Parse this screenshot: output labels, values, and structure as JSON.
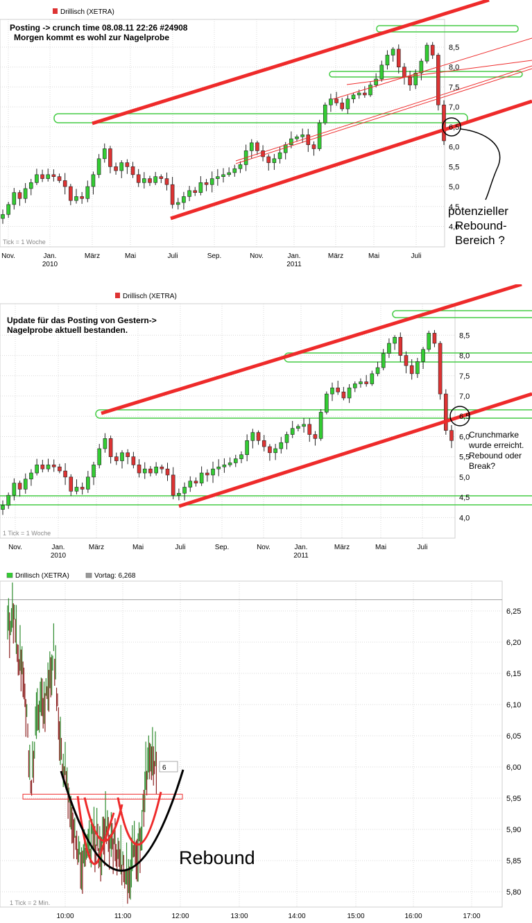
{
  "colors": {
    "up": "#33cc33",
    "down": "#dd3333",
    "channel": "#ee2a2a",
    "band": "#44cc44",
    "grid": "#d8d8d8",
    "axis_text": "#000000"
  },
  "chart_data": [
    {
      "type": "candlestick",
      "legend": "Drillisch (XETRA)",
      "annotation": [
        "Posting -> crunch time  08.08.11 22:26 #24908",
        "Morgen kommt es wohl zur Nagelprobe"
      ],
      "note": [
        "potenzieller",
        "Rebound-",
        "Bereich  ?"
      ],
      "tick_note": "Tick = 1 Woche",
      "x_ticks": [
        "Nov.",
        "Jan.",
        "März",
        "Mai",
        "Juli",
        "Sep.",
        "Nov.",
        "Jan.",
        "März",
        "Mai",
        "Juli"
      ],
      "year_labels": [
        "2010",
        "2011"
      ],
      "y_ticks": [
        "4,0",
        "4,5",
        "5,0",
        "5,5",
        "6,0",
        "6,5",
        "7,0",
        "7,5",
        "8,0",
        "8,5"
      ],
      "ylim": [
        3.8,
        8.9
      ],
      "grid": true,
      "closes": [
        4.3,
        4.55,
        4.85,
        4.7,
        4.95,
        5.1,
        5.3,
        5.2,
        5.3,
        5.25,
        5.15,
        5.0,
        4.65,
        4.75,
        4.7,
        5.0,
        5.3,
        5.7,
        5.95,
        5.5,
        5.4,
        5.6,
        5.5,
        5.3,
        5.1,
        5.2,
        5.1,
        5.25,
        5.2,
        5.05,
        4.55,
        4.6,
        4.75,
        4.9,
        4.85,
        5.1,
        5.05,
        5.2,
        5.25,
        5.3,
        5.35,
        5.45,
        5.55,
        5.9,
        6.1,
        5.9,
        5.75,
        5.6,
        5.7,
        5.85,
        6.05,
        6.2,
        6.25,
        6.3,
        6.05,
        5.95,
        6.6,
        7.05,
        7.2,
        7.1,
        6.95,
        7.2,
        7.3,
        7.35,
        7.3,
        7.55,
        7.7,
        8.05,
        8.3,
        8.45,
        8.0,
        7.75,
        7.55,
        7.85,
        8.15,
        8.55,
        8.3,
        7.05,
        6.15
      ],
      "unit": "EUR"
    },
    {
      "type": "candlestick",
      "legend": "Drillisch (XETRA)",
      "annotation": [
        "Update  für das Posting von Gestern->",
        "Nagelprobe aktuell bestanden."
      ],
      "note": [
        "Crunchmarke",
        "wurde erreicht.",
        "Rebound oder",
        "Break?"
      ],
      "tick_note": "1 Tick = 1 Woche",
      "x_ticks": [
        "Nov.",
        "Jan.",
        "März",
        "Mai",
        "Juli",
        "Sep.",
        "Nov.",
        "Jan.",
        "März",
        "Mai",
        "Juli"
      ],
      "year_labels": [
        "2010",
        "2011"
      ],
      "y_ticks": [
        "4,0",
        "4,5",
        "5,0",
        "5,5",
        "6,0",
        "6,5",
        "7,0",
        "7,5",
        "8,0",
        "8,5"
      ],
      "ylim": [
        3.8,
        8.9
      ],
      "grid": true,
      "closes": [
        4.3,
        4.55,
        4.85,
        4.7,
        4.95,
        5.1,
        5.3,
        5.2,
        5.3,
        5.25,
        5.15,
        5.0,
        4.65,
        4.75,
        4.7,
        5.0,
        5.3,
        5.7,
        5.95,
        5.5,
        5.4,
        5.6,
        5.5,
        5.3,
        5.1,
        5.2,
        5.1,
        5.25,
        5.2,
        5.05,
        4.55,
        4.6,
        4.75,
        4.9,
        4.85,
        5.1,
        5.05,
        5.2,
        5.25,
        5.3,
        5.35,
        5.45,
        5.55,
        5.9,
        6.1,
        5.9,
        5.75,
        5.6,
        5.7,
        5.85,
        6.05,
        6.2,
        6.25,
        6.3,
        6.05,
        5.95,
        6.6,
        7.05,
        7.2,
        7.1,
        6.95,
        7.2,
        7.3,
        7.35,
        7.3,
        7.55,
        7.7,
        8.05,
        8.3,
        8.45,
        8.0,
        7.75,
        7.55,
        7.85,
        8.15,
        8.55,
        8.3,
        7.05,
        6.15,
        5.9
      ],
      "unit": "EUR"
    },
    {
      "type": "line",
      "legend": "Drillisch (XETRA)",
      "legend2": "Vortag: 6,268",
      "label": "Rebound",
      "price_tag": "6",
      "tick_note": "1 Tick = 2 Min.",
      "x_ticks": [
        "10:00",
        "11:00",
        "12:00",
        "13:00",
        "14:00",
        "15:00",
        "16:00",
        "17:00"
      ],
      "y_ticks": [
        "5,80",
        "5,85",
        "5,90",
        "5,95",
        "6,00",
        "6,05",
        "6,10",
        "6,15",
        "6,20",
        "6,25"
      ],
      "ylim": [
        5.78,
        6.27
      ],
      "previous_close": 6.268,
      "grid": true,
      "x_minutes": [
        9.0,
        9.1,
        9.2,
        9.3,
        9.4,
        9.5,
        9.6,
        9.7,
        9.8,
        9.9,
        10.0,
        10.1,
        10.2,
        10.3,
        10.4,
        10.5,
        10.6,
        10.7,
        10.8,
        10.9,
        11.0,
        11.1,
        11.2,
        11.3,
        11.4,
        11.5,
        11.6
      ],
      "prices": [
        6.22,
        6.25,
        6.18,
        6.12,
        5.96,
        6.08,
        6.1,
        6.11,
        6.2,
        6.03,
        6.0,
        5.93,
        5.88,
        5.84,
        5.86,
        5.89,
        5.87,
        5.9,
        5.88,
        5.85,
        5.84,
        5.83,
        5.86,
        5.88,
        5.99,
        6.02,
        6.0
      ]
    }
  ]
}
